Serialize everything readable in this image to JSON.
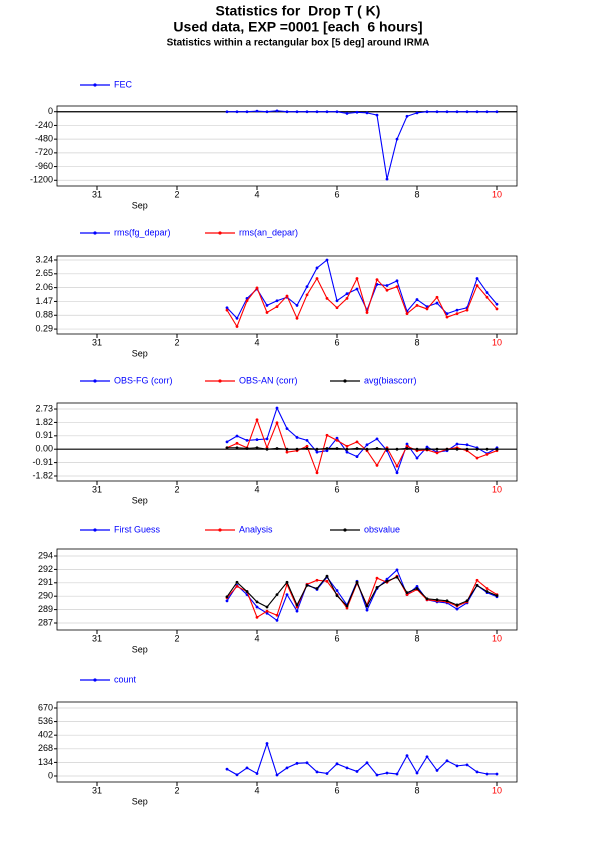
{
  "header": {
    "title": "Statistics for  Drop T ( K)",
    "subtitle": "Used data, EXP =0001 [each  6 hours]",
    "note": "Statistics within a rectangular box [5 deg] around IRMA"
  },
  "chart_data": [
    {
      "type": "line",
      "xlabel": "Sep",
      "xlim": [
        -1,
        10.5
      ],
      "xticks": [
        {
          "value": 0,
          "label": "31"
        },
        2,
        4,
        6,
        8,
        {
          "value": 10,
          "label": "10",
          "color": "#ff0000"
        }
      ],
      "ylim": [
        -1300,
        100
      ],
      "yticks": [
        0,
        -240,
        -480,
        -720,
        -960,
        -1200
      ],
      "grid": true,
      "zero_line": true,
      "x": [
        3.25,
        3.5,
        3.75,
        4,
        4.25,
        4.5,
        4.75,
        5,
        5.25,
        5.5,
        5.75,
        6,
        6.25,
        6.5,
        6.75,
        7,
        7.25,
        7.5,
        7.75,
        8,
        8.25,
        8.5,
        8.75,
        9,
        9.25,
        9.5,
        9.75,
        10
      ],
      "series": [
        {
          "name": "FEC",
          "color": "#0000ff",
          "values": [
            0,
            0,
            0,
            10,
            0,
            15,
            0,
            0,
            0,
            0,
            0,
            0,
            -30,
            -10,
            -20,
            -60,
            -1180,
            -480,
            -80,
            -20,
            0,
            0,
            0,
            0,
            0,
            0,
            0,
            0
          ]
        }
      ]
    },
    {
      "type": "line",
      "xlabel": "Sep",
      "xlim": [
        -1,
        10.5
      ],
      "xticks": [
        {
          "value": 0,
          "label": "31"
        },
        2,
        4,
        6,
        8,
        {
          "value": 10,
          "label": "10",
          "color": "#ff0000"
        }
      ],
      "ylim": [
        0.08,
        3.41
      ],
      "yticks": [
        0.29,
        0.88,
        1.47,
        2.06,
        2.65,
        3.24
      ],
      "grid": true,
      "zero_line": false,
      "x": [
        3.25,
        3.5,
        3.75,
        4,
        4.25,
        4.5,
        4.75,
        5,
        5.25,
        5.5,
        5.75,
        6,
        6.25,
        6.5,
        6.75,
        7,
        7.25,
        7.5,
        7.75,
        8,
        8.25,
        8.5,
        8.75,
        9,
        9.25,
        9.5,
        9.75,
        10
      ],
      "series": [
        {
          "name": "rms(fg_depar)",
          "color": "#0000ff",
          "values": [
            1.2,
            0.75,
            1.6,
            2.0,
            1.3,
            1.5,
            1.65,
            1.3,
            2.1,
            2.9,
            3.24,
            1.5,
            1.8,
            2.0,
            1.1,
            2.2,
            2.15,
            2.35,
            1.05,
            1.55,
            1.25,
            1.4,
            0.95,
            1.1,
            1.2,
            2.45,
            1.85,
            1.35
          ]
        },
        {
          "name": "rms(an_depar)",
          "color": "#ff0000",
          "values": [
            1.1,
            0.4,
            1.5,
            2.05,
            1.0,
            1.25,
            1.7,
            0.75,
            1.75,
            2.45,
            1.6,
            1.2,
            1.6,
            2.45,
            1.0,
            2.4,
            1.95,
            2.1,
            0.95,
            1.3,
            1.15,
            1.65,
            0.8,
            0.95,
            1.1,
            2.15,
            1.65,
            1.15
          ]
        }
      ]
    },
    {
      "type": "line",
      "xlabel": "Sep",
      "xlim": [
        -1,
        10.5
      ],
      "xticks": [
        {
          "value": 0,
          "label": "31"
        },
        2,
        4,
        6,
        8,
        {
          "value": 10,
          "label": "10",
          "color": "#ff0000"
        }
      ],
      "ylim": [
        -2.16,
        3.14
      ],
      "yticks": [
        2.73,
        1.82,
        0.91,
        {
          "value": 0,
          "label": "0.00"
        },
        -0.91,
        -1.82
      ],
      "grid": true,
      "zero_line": true,
      "x": [
        3.25,
        3.5,
        3.75,
        4,
        4.25,
        4.5,
        4.75,
        5,
        5.25,
        5.5,
        5.75,
        6,
        6.25,
        6.5,
        6.75,
        7,
        7.25,
        7.5,
        7.75,
        8,
        8.25,
        8.5,
        8.75,
        9,
        9.25,
        9.5,
        9.75,
        10
      ],
      "series": [
        {
          "name": "OBS-FG (corr)",
          "color": "#0000ff",
          "values": [
            0.5,
            0.9,
            0.6,
            0.65,
            0.7,
            2.8,
            1.4,
            0.8,
            0.6,
            -0.2,
            -0.1,
            0.75,
            -0.2,
            -0.5,
            0.3,
            0.7,
            -0.1,
            -1.6,
            0.35,
            -0.6,
            0.15,
            -0.2,
            -0.1,
            0.35,
            0.3,
            0.1,
            -0.3,
            0.1
          ]
        },
        {
          "name": "OBS-AN (corr)",
          "color": "#ff0000",
          "values": [
            0.1,
            0.4,
            0.1,
            2.0,
            0.1,
            1.8,
            -0.2,
            -0.1,
            0.2,
            -1.6,
            0.95,
            0.6,
            0.2,
            0.5,
            -0.1,
            -1.1,
            0.1,
            -1.15,
            0.2,
            -0.1,
            -0.05,
            -0.25,
            0,
            0.1,
            -0.1,
            -0.6,
            -0.35,
            -0.1
          ]
        },
        {
          "name": "avg(biascorr)",
          "color": "#000000",
          "values": [
            0.1,
            0.1,
            0.05,
            0.1,
            0,
            0.05,
            0,
            0,
            0.05,
            0,
            0.05,
            0.05,
            0,
            0.05,
            0,
            0.05,
            0,
            0,
            0.05,
            0,
            0,
            0,
            0,
            0,
            0,
            0,
            0,
            0
          ]
        }
      ]
    },
    {
      "type": "line",
      "xlabel": "Sep",
      "xlim": [
        -1,
        10.5
      ],
      "xticks": [
        {
          "value": 0,
          "label": "31"
        },
        2,
        4,
        6,
        8,
        {
          "value": 10,
          "label": "10",
          "color": "#ff0000"
        }
      ],
      "ylim": [
        286.57,
        294.43
      ],
      "yticks": [
        {
          "value": 293.75,
          "label": "294"
        },
        {
          "value": 292.45,
          "label": "292"
        },
        {
          "value": 291.15,
          "label": "291"
        },
        {
          "value": 289.85,
          "label": "290"
        },
        {
          "value": 288.55,
          "label": "289"
        },
        {
          "value": 287.25,
          "label": "287"
        }
      ],
      "grid": true,
      "zero_line": false,
      "x": [
        3.25,
        3.5,
        3.75,
        4,
        4.25,
        4.5,
        4.75,
        5,
        5.25,
        5.5,
        5.75,
        6,
        6.25,
        6.5,
        6.75,
        7,
        7.25,
        7.5,
        7.75,
        8,
        8.25,
        8.5,
        8.75,
        9,
        9.25,
        9.5,
        9.75,
        10
      ],
      "series": [
        {
          "name": "First Guess",
          "color": "#0000ff",
          "values": [
            289.4,
            290.9,
            290.0,
            288.8,
            288.2,
            287.5,
            290.0,
            288.4,
            291.0,
            290.5,
            291.7,
            290.4,
            289.0,
            291.3,
            288.5,
            290.6,
            291.5,
            292.4,
            290.0,
            290.8,
            289.5,
            289.3,
            289.2,
            288.6,
            289.2,
            290.9,
            290.2,
            289.8
          ]
        },
        {
          "name": "Analysis",
          "color": "#ff0000",
          "values": [
            289.7,
            290.8,
            290.3,
            287.8,
            288.4,
            288.0,
            291.0,
            288.8,
            291.0,
            291.4,
            291.3,
            290.0,
            288.7,
            291.1,
            289.0,
            291.6,
            291.2,
            291.8,
            290.0,
            290.5,
            289.5,
            289.4,
            289.3,
            288.9,
            289.3,
            291.4,
            290.6,
            290.0
          ]
        },
        {
          "name": "obsvalue",
          "color": "#000000",
          "values": [
            289.8,
            291.2,
            290.3,
            289.3,
            288.8,
            290.0,
            291.2,
            289.0,
            290.9,
            290.6,
            291.8,
            289.9,
            288.9,
            291.2,
            288.9,
            290.7,
            291.3,
            291.7,
            290.2,
            290.6,
            289.6,
            289.5,
            289.4,
            289.0,
            289.4,
            290.9,
            290.3,
            289.9
          ]
        }
      ]
    },
    {
      "type": "line",
      "xlabel": "Sep",
      "xlim": [
        -1,
        10.5
      ],
      "xticks": [
        {
          "value": 0,
          "label": "31"
        },
        2,
        4,
        6,
        8,
        {
          "value": 10,
          "label": "10",
          "color": "#ff0000"
        }
      ],
      "ylim": [
        -59,
        729
      ],
      "yticks": [
        670,
        536,
        402,
        268,
        134,
        0
      ],
      "grid": true,
      "zero_line": false,
      "x": [
        3.25,
        3.5,
        3.75,
        4,
        4.25,
        4.5,
        4.75,
        5,
        5.25,
        5.5,
        5.75,
        6,
        6.25,
        6.5,
        6.75,
        7,
        7.25,
        7.5,
        7.75,
        8,
        8.25,
        8.5,
        8.75,
        9,
        9.25,
        9.5,
        9.75,
        10
      ],
      "series": [
        {
          "name": "count",
          "color": "#0000ff",
          "values": [
            68,
            12,
            80,
            25,
            320,
            10,
            80,
            125,
            130,
            40,
            25,
            120,
            80,
            45,
            130,
            10,
            30,
            20,
            200,
            30,
            190,
            55,
            150,
            100,
            110,
            40,
            20,
            20
          ]
        }
      ]
    }
  ]
}
